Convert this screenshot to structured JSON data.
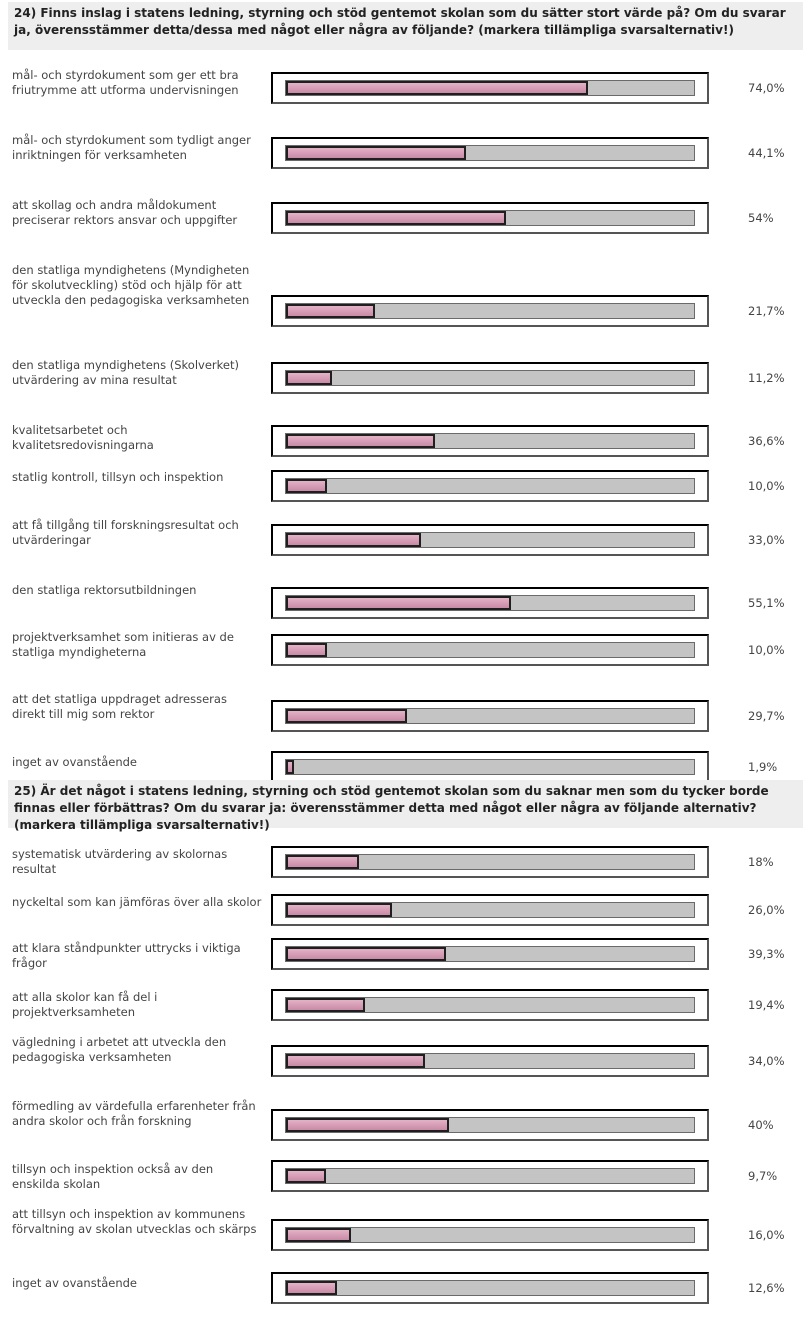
{
  "chart_data": [
    {
      "type": "bar",
      "title": "24) Finns inslag i statens ledning, styrning och stöd gentemot skolan som du sätter stort värde på? Om du svarar ja, överensstämmer detta/dessa med något eller några av följande? (markera tillämpliga svarsalternativ!)",
      "unit": "%",
      "categories": [
        "mål- och styrdokument som ger ett bra friutrymme att utforma undervisningen",
        "mål- och styrdokument som tydligt anger inriktningen för verksamheten",
        "att skollag och andra måldokument preciserar rektors ansvar och uppgifter",
        "den statliga myndighetens (Myndigheten för skolutveckling) stöd och hjälp för att utveckla den pedagogiska verksamheten",
        "den statliga myndighetens (Skolverket) utvärdering av mina resultat",
        "kvalitetsarbetet och kvalitetsredovisningarna",
        "statlig kontroll, tillsyn och inspektion",
        "att få tillgång till forskningsresultat och utvärderingar",
        "den statliga rektorsutbildningen",
        "projektverksamhet som initieras av de statliga myndigheterna",
        "att det statliga uppdraget adresseras direkt till mig som rektor",
        "inget av ovanstående"
      ],
      "values": [
        74.0,
        44.1,
        54,
        21.7,
        11.2,
        36.6,
        10.0,
        33.0,
        55.1,
        10.0,
        29.7,
        1.9
      ],
      "value_labels": [
        "74,0%",
        "44,1%",
        "54%",
        "21,7%",
        "11,2%",
        "36,6%",
        "10,0%",
        "33,0%",
        "55,1%",
        "10,0%",
        "29,7%",
        "1,9%"
      ],
      "xlim": [
        0,
        100
      ]
    },
    {
      "type": "bar",
      "title": "25) Är det något i statens ledning, styrning och stöd gentemot skolan som du saknar men som du tycker borde finnas eller förbättras? Om du svarar ja: överensstämmer detta med något eller några av följande alternativ? (markera tillämpliga svarsalternativ!)",
      "unit": "%",
      "categories": [
        "systematisk utvärdering av skolornas resultat",
        "nyckeltal som kan jämföras över alla skolor",
        "att klara ståndpunkter uttrycks i viktiga frågor",
        "att alla skolor kan få del i projektverksamheten",
        "vägledning i arbetet att utveckla den pedagogiska verksamheten",
        "förmedling av värdefulla erfarenheter från andra skolor och från forskning",
        "tillsyn och inspektion också av den enskilda skolan",
        "att tillsyn och inspektion av kommunens förvaltning av skolan utvecklas och skärps",
        "inget av ovanstående"
      ],
      "values": [
        18,
        26.0,
        39.3,
        19.4,
        34.0,
        40,
        9.7,
        16.0,
        12.6
      ],
      "value_labels": [
        "18%",
        "26,0%",
        "39,3%",
        "19,4%",
        "34,0%",
        "40%",
        "9,7%",
        "16,0%",
        "12,6%"
      ],
      "xlim": [
        0,
        100
      ]
    }
  ]
}
